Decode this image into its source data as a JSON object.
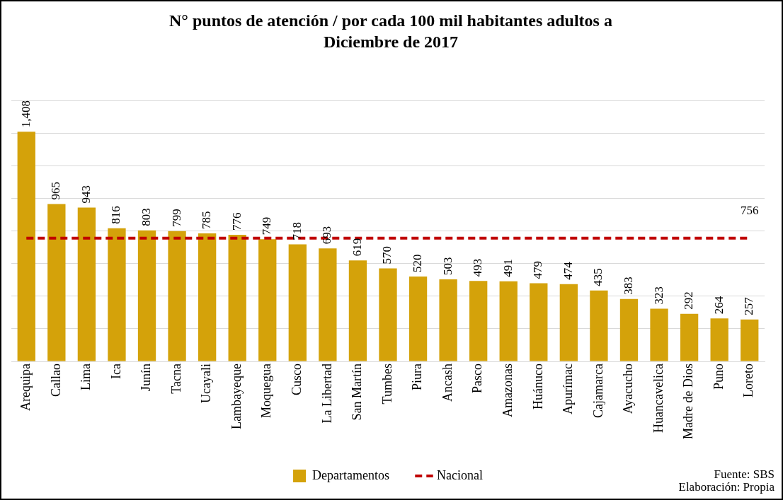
{
  "chart_data": {
    "type": "bar",
    "title": "N° puntos de atención / por cada 100 mil habitantes adultos a Diciembre de 2017",
    "categories": [
      "Arequipa",
      "Callao",
      "Lima",
      "Ica",
      "Junín",
      "Tacna",
      "Ucayali",
      "Lambayeque",
      "Moquegua",
      "Cusco",
      "La Libertad",
      "San Martín",
      "Tumbes",
      "Piura",
      "Ancash",
      "Pasco",
      "Amazonas",
      "Huánuco",
      "Apurímac",
      "Cajamarca",
      "Ayacucho",
      "Huancavelica",
      "Madre de Dios",
      "Puno",
      "Loreto"
    ],
    "series": [
      {
        "name": "Departamentos",
        "color": "#d4a20a",
        "values": [
          1408,
          965,
          943,
          816,
          803,
          799,
          785,
          776,
          749,
          718,
          693,
          619,
          570,
          520,
          503,
          493,
          491,
          479,
          474,
          435,
          383,
          323,
          292,
          264,
          257
        ],
        "value_labels": [
          "1,408",
          "965",
          "943",
          "816",
          "803",
          "799",
          "785",
          "776",
          "749",
          "718",
          "693",
          "619",
          "570",
          "520",
          "503",
          "493",
          "491",
          "479",
          "474",
          "435",
          "383",
          "323",
          "292",
          "264",
          "257"
        ]
      },
      {
        "name": "Nacional",
        "type": "line",
        "color": "#c00000",
        "line_style": "dashed",
        "marker": "none",
        "values": [
          756,
          756,
          756,
          756,
          756,
          756,
          756,
          756,
          756,
          756,
          756,
          756,
          756,
          756,
          756,
          756,
          756,
          756,
          756,
          756,
          756,
          756,
          756,
          756,
          756
        ],
        "value_labels": [
          null,
          null,
          null,
          null,
          null,
          null,
          null,
          null,
          null,
          null,
          null,
          null,
          null,
          null,
          null,
          null,
          null,
          null,
          null,
          null,
          null,
          null,
          null,
          null,
          "756"
        ]
      }
    ],
    "tick_labels": "x",
    "grid": "y",
    "legend": "bottom",
    "annotations": [
      "Fuente: SBS",
      "Elaboración: Propia"
    ]
  }
}
